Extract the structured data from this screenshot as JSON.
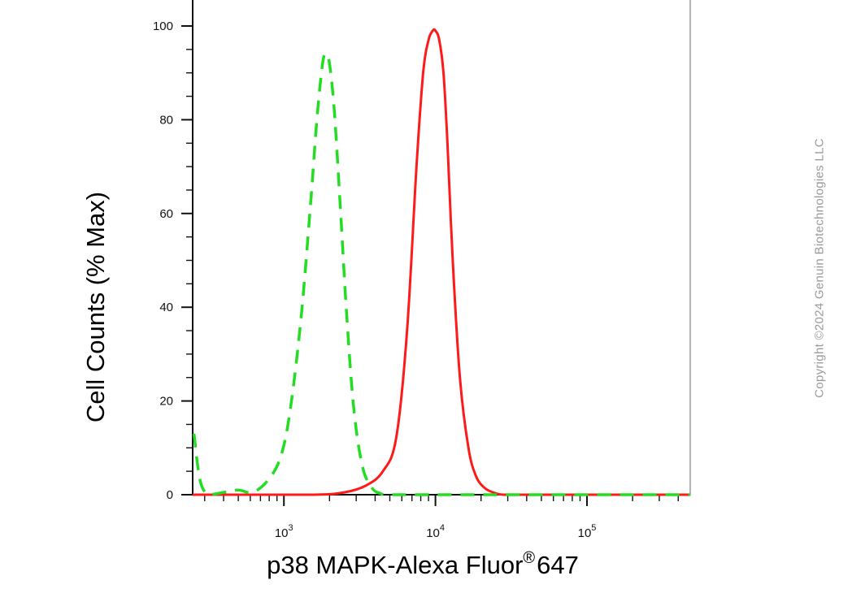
{
  "chart_data": {
    "type": "line",
    "xlabel": "p38 MAPK-Alexa Fluor",
    "xlabel_sup": "®",
    "xlabel_suffix": "647",
    "ylabel": "Cell Counts (% Max)",
    "x_scale": "log",
    "xlim": [
      250,
      480000
    ],
    "ylim": [
      0,
      105
    ],
    "y_ticks": [
      0,
      20,
      40,
      60,
      80,
      100
    ],
    "x_ticks": [
      {
        "value": 1000,
        "base": "10",
        "exp": "3"
      },
      {
        "value": 10000,
        "base": "10",
        "exp": "4"
      },
      {
        "value": 100000,
        "base": "10",
        "exp": "5"
      }
    ],
    "series": [
      {
        "color": "#ff1a1a",
        "style": "solid",
        "x": [
          250,
          1500,
          2500,
          3500,
          4500,
          5500,
          6500,
          7500,
          8300,
          9000,
          9600,
          10000,
          10600,
          11300,
          12000,
          13000,
          14500,
          16500,
          18500,
          21000,
          24000,
          28000,
          40000,
          100000,
          480000
        ],
        "y": [
          0,
          0,
          0.5,
          2,
          5,
          12,
          35,
          70,
          90,
          97,
          99,
          99,
          97,
          90,
          75,
          50,
          25,
          10,
          4,
          1.5,
          0.5,
          0,
          0,
          0,
          0
        ]
      },
      {
        "color": "#22dd22",
        "style": "dashed",
        "x": [
          255,
          280,
          320,
          400,
          500,
          620,
          780,
          950,
          1100,
          1300,
          1500,
          1650,
          1800,
          1900,
          2000,
          2150,
          2350,
          2600,
          2900,
          3300,
          3800,
          4300,
          5000,
          10000,
          480000
        ],
        "y": [
          13,
          3,
          0,
          0.5,
          1,
          0.5,
          3,
          8,
          18,
          38,
          62,
          80,
          92,
          94,
          92,
          82,
          62,
          38,
          18,
          6,
          1.5,
          0.3,
          0,
          0,
          0
        ]
      }
    ]
  },
  "watermark": "Copyright ©2024 Genuin Biotechnologies LLC"
}
